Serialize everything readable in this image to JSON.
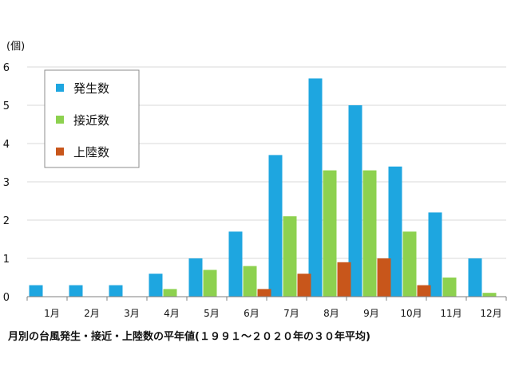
{
  "chart_data": {
    "type": "bar",
    "title": "月別の台風発生・接近・上陸数の平年値(１９９１～２０２０年の３０年平均)",
    "ylabel": "(個)",
    "ylim": [
      0,
      6
    ],
    "yticks": [
      0,
      1,
      2,
      3,
      4,
      5,
      6
    ],
    "grid": true,
    "legend_position": "top-left",
    "categories": [
      "1月",
      "2月",
      "3月",
      "4月",
      "5月",
      "6月",
      "7月",
      "8月",
      "9月",
      "10月",
      "11月",
      "12月"
    ],
    "series": [
      {
        "name": "発生数",
        "color": "#1ea6e0",
        "values": [
          0.3,
          0.3,
          0.3,
          0.6,
          1.0,
          1.7,
          3.7,
          5.7,
          5.0,
          3.4,
          2.2,
          1.0
        ]
      },
      {
        "name": "接近数",
        "color": "#8dd14f",
        "values": [
          0.0,
          0.0,
          0.0,
          0.2,
          0.7,
          0.8,
          2.1,
          3.3,
          3.3,
          1.7,
          0.5,
          0.1
        ]
      },
      {
        "name": "上陸数",
        "color": "#c8561b",
        "values": [
          0.0,
          0.0,
          0.0,
          0.0,
          0.0,
          0.2,
          0.6,
          0.9,
          1.0,
          0.3,
          0.0,
          0.0
        ]
      }
    ]
  }
}
